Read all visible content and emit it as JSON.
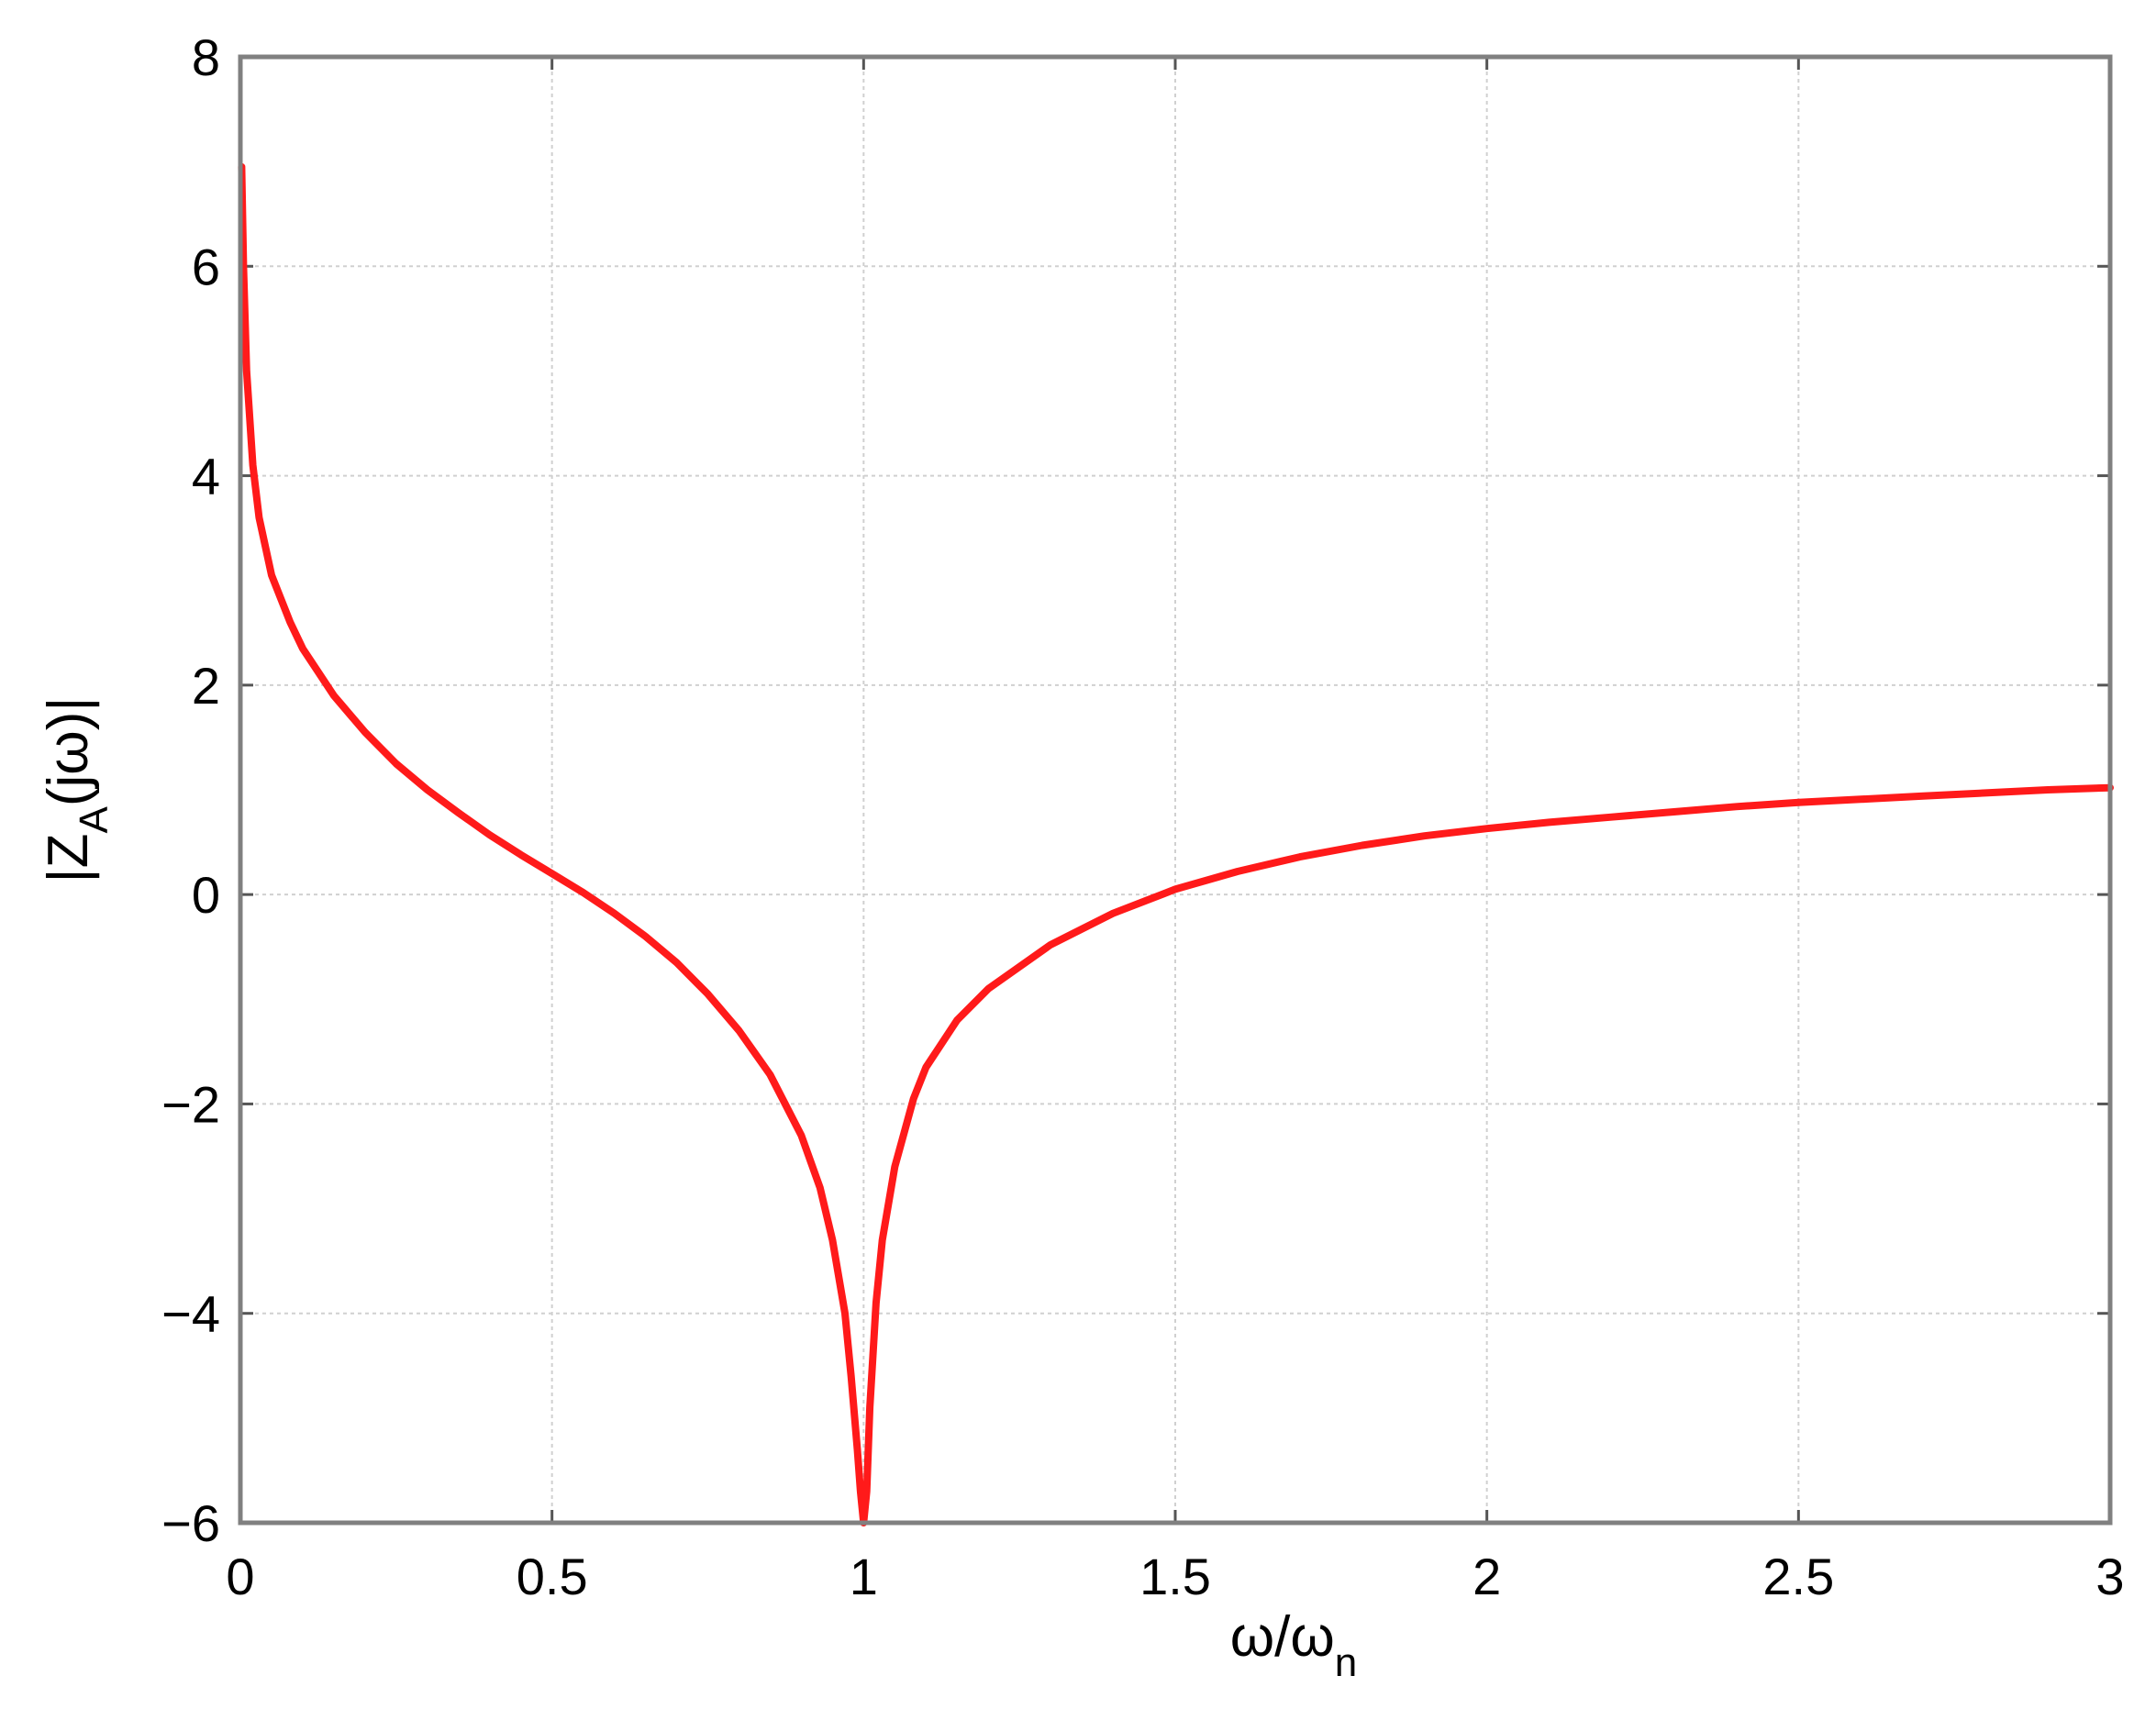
{
  "chart_data": {
    "type": "line",
    "title": "",
    "xlabel": {
      "main": "ω/ω",
      "sub": "n"
    },
    "ylabel": {
      "pre": "|Z",
      "sub": "A",
      "post": "(jω)|"
    },
    "xlim": [
      0,
      3
    ],
    "ylim": [
      -6,
      8
    ],
    "grid": true,
    "x_ticks": [
      0,
      0.5,
      1,
      1.5,
      2,
      2.5,
      3
    ],
    "x_tick_labels": [
      "0",
      "0.5",
      "1",
      "1.5",
      "2",
      "2.5",
      "3"
    ],
    "y_ticks": [
      -6,
      -4,
      -2,
      0,
      2,
      4,
      6,
      8
    ],
    "y_tick_labels": [
      "−6",
      "−4",
      "−2",
      "0",
      "2",
      "4",
      "6",
      "8"
    ],
    "series": [
      {
        "color": "#ff1a1a",
        "x": [
          0.002,
          0.005,
          0.01,
          0.02,
          0.03,
          0.05,
          0.08,
          0.1,
          0.15,
          0.2,
          0.25,
          0.3,
          0.35,
          0.4,
          0.45,
          0.5,
          0.55,
          0.6,
          0.65,
          0.7,
          0.75,
          0.8,
          0.85,
          0.9,
          0.93,
          0.95,
          0.97,
          0.98,
          0.99,
          0.995,
          1.0,
          1.005,
          1.01,
          1.02,
          1.03,
          1.05,
          1.08,
          1.1,
          1.15,
          1.2,
          1.3,
          1.4,
          1.5,
          1.6,
          1.7,
          1.8,
          1.9,
          2.0,
          2.1,
          2.2,
          2.3,
          2.4,
          2.5,
          2.6,
          2.7,
          2.8,
          2.9,
          3.0
        ],
        "y": [
          6.95,
          6.0,
          5.0,
          4.1,
          3.6,
          3.05,
          2.6,
          2.35,
          1.9,
          1.55,
          1.25,
          1.0,
          0.78,
          0.57,
          0.38,
          0.2,
          0.02,
          -0.18,
          -0.4,
          -0.65,
          -0.95,
          -1.3,
          -1.72,
          -2.3,
          -2.8,
          -3.3,
          -4.0,
          -4.6,
          -5.3,
          -5.7,
          -6.0,
          -5.7,
          -4.9,
          -3.9,
          -3.3,
          -2.6,
          -1.95,
          -1.65,
          -1.2,
          -0.9,
          -0.48,
          -0.18,
          0.05,
          0.22,
          0.36,
          0.47,
          0.56,
          0.63,
          0.69,
          0.74,
          0.79,
          0.84,
          0.88,
          0.91,
          0.94,
          0.97,
          1.0,
          1.02
        ]
      }
    ]
  }
}
